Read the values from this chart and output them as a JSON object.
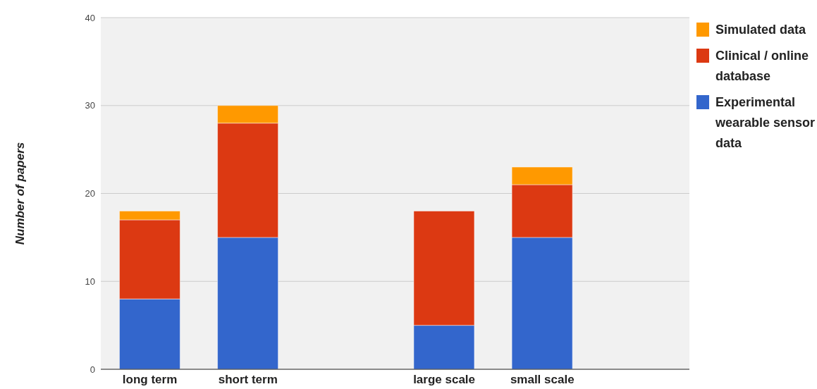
{
  "chart_data": {
    "type": "bar",
    "stacked": true,
    "ylabel": "Number of papers",
    "categories": [
      "long term",
      "short term",
      null,
      "large scale",
      "small scale",
      null
    ],
    "series": [
      {
        "name": "Experimental wearable sensor data",
        "color": "#3366cc",
        "values": [
          8,
          15,
          null,
          5,
          15,
          null
        ]
      },
      {
        "name": "Clinical / online database",
        "color": "#dc3912",
        "values": [
          9,
          13,
          null,
          13,
          6,
          null
        ]
      },
      {
        "name": "Simulated data",
        "color": "#ff9900",
        "values": [
          1,
          2,
          null,
          0,
          2,
          null
        ]
      }
    ],
    "ylim": [
      0,
      40
    ],
    "yticks": [
      0,
      10,
      20,
      30,
      40
    ],
    "grid": "y",
    "legend": "top right"
  }
}
